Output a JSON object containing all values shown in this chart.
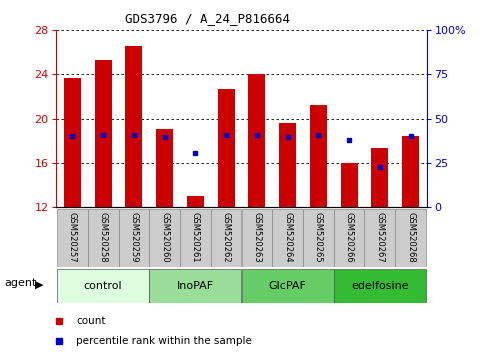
{
  "title": "GDS3796 / A_24_P816664",
  "samples": [
    "GSM520257",
    "GSM520258",
    "GSM520259",
    "GSM520260",
    "GSM520261",
    "GSM520262",
    "GSM520263",
    "GSM520264",
    "GSM520265",
    "GSM520266",
    "GSM520267",
    "GSM520268"
  ],
  "bar_heights": [
    23.7,
    25.3,
    26.6,
    19.1,
    13.0,
    22.7,
    24.0,
    19.6,
    21.2,
    16.0,
    17.3,
    18.4
  ],
  "bar_bottom": 12,
  "bar_color": "#cc0000",
  "blue_y": [
    18.4,
    18.5,
    18.5,
    18.3,
    16.9,
    18.5,
    18.5,
    18.3,
    18.5,
    18.1,
    15.6,
    18.4
  ],
  "blue_color": "#0000cc",
  "ylim_left": [
    12,
    28
  ],
  "yticks_left": [
    12,
    16,
    20,
    24,
    28
  ],
  "ylim_right": [
    0,
    100
  ],
  "yticks_right": [
    0,
    25,
    50,
    75,
    100
  ],
  "yticklabels_right": [
    "0",
    "25",
    "50",
    "75",
    "100%"
  ],
  "groups": [
    {
      "label": "control",
      "start": 0,
      "end": 2,
      "color": "#ddffdd"
    },
    {
      "label": "InoPAF",
      "start": 3,
      "end": 5,
      "color": "#99dd99"
    },
    {
      "label": "GlcPAF",
      "start": 6,
      "end": 8,
      "color": "#66cc66"
    },
    {
      "label": "edelfosine",
      "start": 9,
      "end": 11,
      "color": "#33bb33"
    }
  ],
  "agent_label": "agent",
  "legend_count_color": "#cc0000",
  "legend_pct_color": "#0000cc",
  "background_color": "#ffffff",
  "bar_width": 0.55,
  "grid_color": "#000000",
  "tick_color_left": "#cc0000",
  "tick_color_right": "#0000cc",
  "sample_box_color": "#cccccc",
  "sample_box_edge": "#888888"
}
